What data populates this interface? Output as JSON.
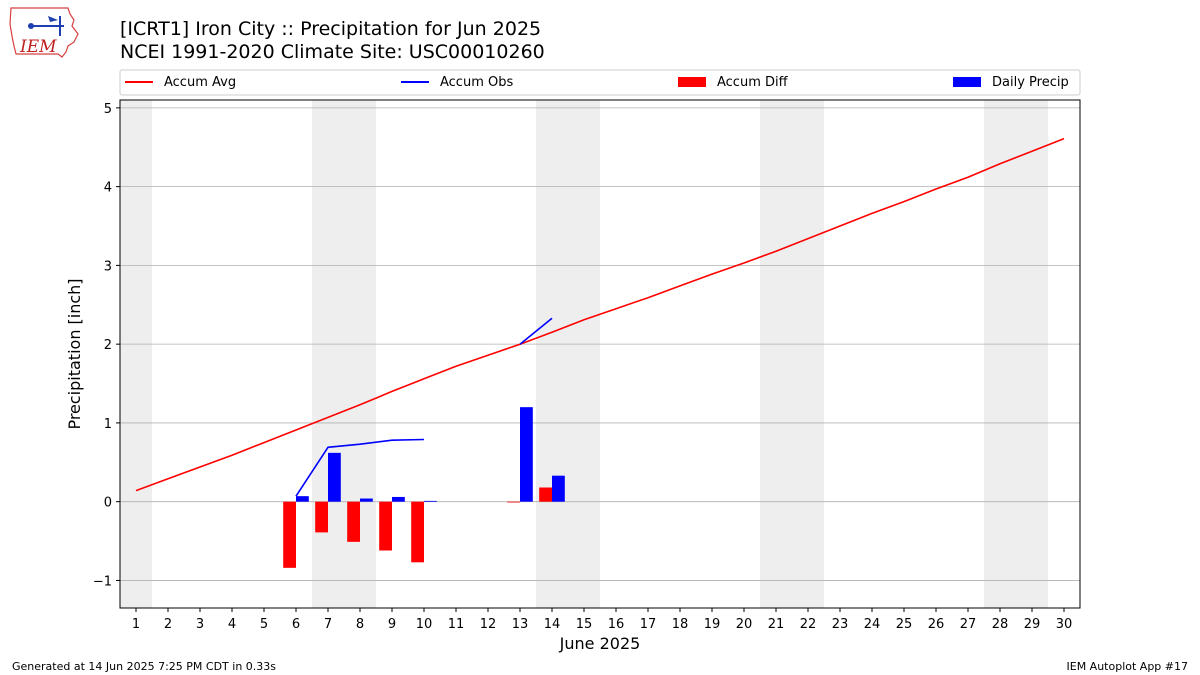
{
  "header": {
    "logo_text": "IEM",
    "title_lines": [
      "[ICRT1] Iron City :: Precipitation for Jun 2025",
      "NCEI 1991-2020 Climate Site: USC00010260"
    ]
  },
  "footer": {
    "left": "Generated at 14 Jun 2025 7:25 PM CDT in 0.33s",
    "right": "IEM Autoplot App #17"
  },
  "colors": {
    "accum_avg": "#ff0000",
    "accum_obs": "#0000ff",
    "accum_diff": "#ff0000",
    "daily_precip": "#0000ff",
    "weekend_shade": "#eeeeee",
    "grid": "#b0b0b0"
  },
  "chart_data": {
    "type": "bar",
    "xlabel": "June 2025",
    "ylabel": "Precipitation [inch]",
    "xlim": [
      0.5,
      30.5
    ],
    "ylim": [
      -1.35,
      5.1
    ],
    "x_ticks": [
      1,
      2,
      3,
      4,
      5,
      6,
      7,
      8,
      9,
      10,
      11,
      12,
      13,
      14,
      15,
      16,
      17,
      18,
      19,
      20,
      21,
      22,
      23,
      24,
      25,
      26,
      27,
      28,
      29,
      30
    ],
    "y_ticks": [
      -1,
      0,
      1,
      2,
      3,
      4,
      5
    ],
    "y_tick_labels": [
      "−1",
      "0",
      "1",
      "2",
      "3",
      "4",
      "5"
    ],
    "grid": "y",
    "legend": {
      "placement": "top",
      "entries": [
        {
          "label": "Accum Avg",
          "kind": "line",
          "color": "#ff0000"
        },
        {
          "label": "Accum Obs",
          "kind": "line",
          "color": "#0000ff"
        },
        {
          "label": "Accum Diff",
          "kind": "bar",
          "color": "#ff0000"
        },
        {
          "label": "Daily Precip",
          "kind": "bar",
          "color": "#0000ff"
        }
      ]
    },
    "weekend_spans": [
      [
        0.5,
        1.5
      ],
      [
        6.5,
        8.5
      ],
      [
        13.5,
        15.5
      ],
      [
        20.5,
        22.5
      ],
      [
        27.5,
        29.5
      ]
    ],
    "series": [
      {
        "name": "Accum Avg",
        "kind": "line",
        "color": "#ff0000",
        "x": [
          1,
          2,
          3,
          4,
          5,
          6,
          7,
          8,
          9,
          10,
          11,
          12,
          13,
          14,
          15,
          16,
          17,
          18,
          19,
          20,
          21,
          22,
          23,
          24,
          25,
          26,
          27,
          28,
          29,
          30
        ],
        "y": [
          0.14,
          0.29,
          0.44,
          0.59,
          0.75,
          0.91,
          1.07,
          1.23,
          1.4,
          1.56,
          1.72,
          1.86,
          2.0,
          2.15,
          2.31,
          2.45,
          2.59,
          2.74,
          2.89,
          3.03,
          3.18,
          3.34,
          3.5,
          3.66,
          3.81,
          3.97,
          4.12,
          4.29,
          4.45,
          4.61
        ]
      },
      {
        "name": "Accum Obs",
        "kind": "line",
        "color": "#0000ff",
        "x": [
          6,
          7,
          8,
          9,
          10
        ],
        "y": [
          0.07,
          0.69,
          0.73,
          0.78,
          0.79
        ]
      },
      {
        "name": "Accum Obs",
        "kind": "line",
        "color": "#0000ff",
        "x": [
          13,
          14
        ],
        "y": [
          2.0,
          2.33
        ]
      },
      {
        "name": "Accum Diff",
        "kind": "bar",
        "color": "#ff0000",
        "x": [
          6,
          7,
          8,
          9,
          10,
          13,
          14
        ],
        "y": [
          -0.84,
          -0.39,
          -0.51,
          -0.62,
          -0.77,
          -0.01,
          0.18
        ]
      },
      {
        "name": "Daily Precip",
        "kind": "bar",
        "color": "#0000ff",
        "x": [
          6,
          7,
          8,
          9,
          10,
          13,
          14
        ],
        "y": [
          0.07,
          0.62,
          0.04,
          0.06,
          0.01,
          1.2,
          0.33
        ]
      }
    ]
  }
}
